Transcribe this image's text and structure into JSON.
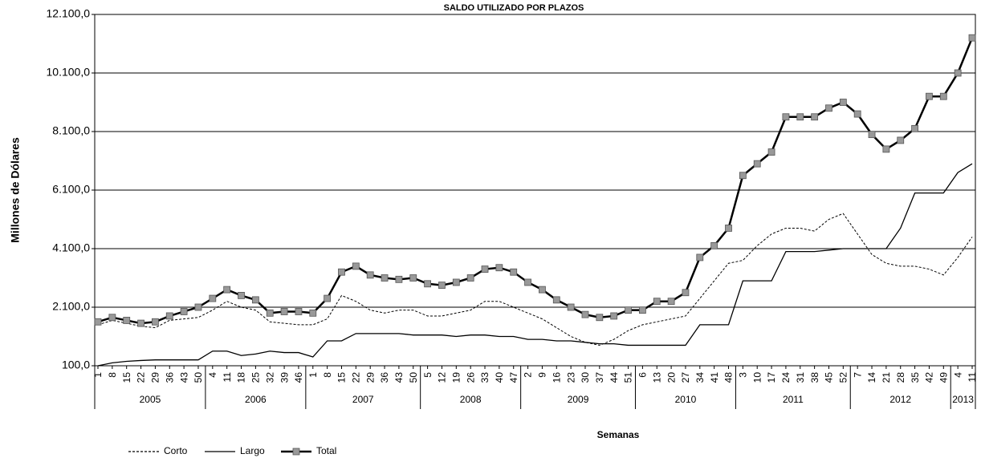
{
  "chart_data": {
    "type": "line",
    "title": "SALDO UTILIZADO POR PLAZOS",
    "y_label": "Millones de Dólares",
    "x_label": "Semanas",
    "categories": [
      "1",
      "8",
      "15",
      "22",
      "29",
      "36",
      "43",
      "50",
      "4",
      "11",
      "18",
      "25",
      "32",
      "39",
      "46",
      "1",
      "8",
      "15",
      "22",
      "29",
      "36",
      "43",
      "50",
      "5",
      "12",
      "19",
      "26",
      "33",
      "40",
      "47",
      "2",
      "9",
      "16",
      "23",
      "30",
      "37",
      "44",
      "51",
      "6",
      "13",
      "20",
      "27",
      "34",
      "41",
      "48",
      "3",
      "10",
      "17",
      "24",
      "31",
      "38",
      "45",
      "52",
      "7",
      "14",
      "21",
      "28",
      "35",
      "42",
      "49",
      "4",
      "11"
    ],
    "groups": [
      "2005",
      "2006",
      "2007",
      "2008",
      "2009",
      "2010",
      "2011",
      "2012",
      "2013"
    ],
    "ylim": [
      100,
      12100
    ],
    "yticks": [
      {
        "value": 100,
        "label": "100,0"
      },
      {
        "value": 2100,
        "label": "2.100,0"
      },
      {
        "value": 4100,
        "label": "4.100,0"
      },
      {
        "value": 6100,
        "label": "6.100,0"
      },
      {
        "value": 8100,
        "label": "8.100,0"
      },
      {
        "value": 10100,
        "label": "10.100,0"
      },
      {
        "value": 12100,
        "label": "12.100,0"
      }
    ],
    "grid": true,
    "series": [
      {
        "name": "Corto",
        "color": "#000000",
        "style": "dotted",
        "values": [
          1500,
          1650,
          1550,
          1450,
          1400,
          1650,
          1700,
          1750,
          2000,
          2300,
          2100,
          2000,
          1600,
          1550,
          1500,
          1500,
          1700,
          2500,
          2300,
          2000,
          1900,
          2000,
          2000,
          1800,
          1800,
          1900,
          2000,
          2300,
          2300,
          2100,
          1900,
          1700,
          1400,
          1100,
          900,
          800,
          1000,
          1300,
          1500,
          1600,
          1700,
          1800,
          2400,
          3000,
          3600,
          3700,
          4200,
          4600,
          4800,
          4800,
          4700,
          5100,
          5300,
          4600,
          3900,
          3600,
          3500,
          3500,
          3400,
          3200,
          3800,
          4500
        ]
      },
      {
        "name": "Largo",
        "color": "#000000",
        "style": "solid",
        "values": [
          100,
          200,
          250,
          280,
          300,
          300,
          300,
          300,
          600,
          600,
          450,
          500,
          600,
          550,
          550,
          400,
          950,
          950,
          1200,
          1200,
          1200,
          1200,
          1150,
          1150,
          1150,
          1100,
          1150,
          1150,
          1100,
          1100,
          1000,
          1000,
          950,
          950,
          900,
          850,
          850,
          800,
          800,
          800,
          800,
          800,
          1500,
          1500,
          1500,
          3000,
          3000,
          3000,
          4000,
          4000,
          4000,
          4050,
          4100,
          4100,
          4100,
          4100,
          4800,
          6000,
          6000,
          6000,
          6700,
          7000
        ]
      },
      {
        "name": "Total",
        "color": "#000000",
        "marker_color": "#999999",
        "style": "marker",
        "values": [
          1600,
          1750,
          1650,
          1550,
          1600,
          1800,
          1950,
          2100,
          2400,
          2700,
          2500,
          2350,
          1900,
          1950,
          1950,
          1900,
          2400,
          3300,
          3500,
          3200,
          3100,
          3050,
          3100,
          2900,
          2850,
          2950,
          3100,
          3400,
          3450,
          3300,
          2950,
          2700,
          2350,
          2100,
          1850,
          1750,
          1800,
          2000,
          2000,
          2300,
          2300,
          2600,
          3800,
          4200,
          4800,
          6600,
          7000,
          7400,
          8600,
          8600,
          8600,
          8900,
          9100,
          8700,
          8000,
          7500,
          7800,
          8200,
          9300,
          9300,
          10100,
          11300
        ]
      }
    ]
  }
}
